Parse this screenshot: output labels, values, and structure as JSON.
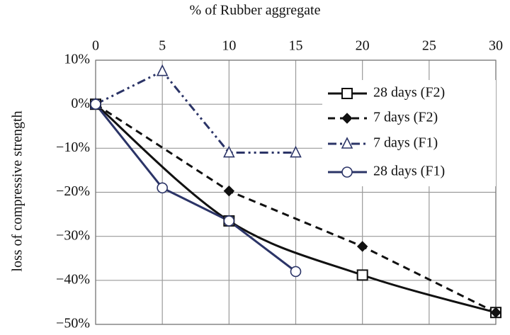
{
  "chart_data": {
    "type": "line",
    "x_label": "% of Rubber aggregate",
    "y_label": "loss of compressive strength",
    "xlim": [
      0,
      30
    ],
    "xticks": [
      0,
      5,
      10,
      15,
      20,
      25,
      30
    ],
    "ylim": [
      -50,
      10
    ],
    "yticks": [
      {
        "value": 10,
        "label": "10%"
      },
      {
        "value": 0,
        "label": "0%"
      },
      {
        "value": -10,
        "label": "−10%"
      },
      {
        "value": -20,
        "label": "−20%"
      },
      {
        "value": -30,
        "label": "−30%"
      },
      {
        "value": -40,
        "label": "−40%"
      },
      {
        "value": -50,
        "label": "−50%"
      }
    ],
    "grid": true,
    "legend": "upper right",
    "series": [
      {
        "name": "28 days (F2)",
        "color": "#111111",
        "dash": "solid",
        "marker": "square",
        "smooth": true,
        "x": [
          0,
          10,
          20,
          30
        ],
        "values": [
          0,
          -26.5,
          -38.8,
          -47.3
        ]
      },
      {
        "name": "7 days (F2)",
        "color": "#111111",
        "dash": "dashed",
        "marker": "diamond",
        "smooth": false,
        "x": [
          0,
          10,
          20,
          30
        ],
        "values": [
          0,
          -19.7,
          -32.3,
          -47.3
        ]
      },
      {
        "name": "7 days (F1)",
        "color": "#2b3467",
        "dash": "dashdotdot",
        "marker": "triangle",
        "smooth": false,
        "x": [
          0,
          5,
          10,
          15
        ],
        "values": [
          0,
          7.5,
          -11,
          -11
        ]
      },
      {
        "name": "28 days (F1)",
        "color": "#2b3467",
        "dash": "solid",
        "marker": "circle",
        "smooth": false,
        "x": [
          0,
          5,
          10,
          15
        ],
        "values": [
          0,
          -19,
          -26.5,
          -38
        ]
      }
    ]
  }
}
